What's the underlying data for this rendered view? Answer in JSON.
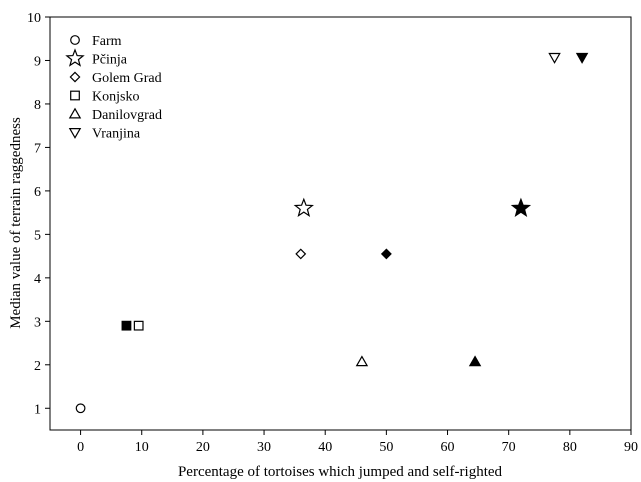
{
  "chart_data": {
    "type": "scatter",
    "title": "",
    "xlabel": "Percentage of tortoises which jumped and self-righted",
    "ylabel": "Median value of terrain raggedness",
    "xlim": [
      -5,
      90
    ],
    "ylim": [
      0.5,
      10
    ],
    "xticks": [
      0,
      10,
      20,
      30,
      40,
      50,
      60,
      70,
      80,
      90
    ],
    "yticks": [
      1,
      2,
      3,
      4,
      5,
      6,
      7,
      8,
      9,
      10
    ],
    "grid": false,
    "legend_position": "top-left",
    "series": [
      {
        "name": "Farm",
        "marker": "circle",
        "points": [
          {
            "x": 0,
            "y": 1.0,
            "filled": false
          }
        ]
      },
      {
        "name": "Pčinja",
        "marker": "star",
        "points": [
          {
            "x": 36.5,
            "y": 5.6,
            "filled": false
          },
          {
            "x": 72,
            "y": 5.6,
            "filled": true
          }
        ]
      },
      {
        "name": "Golem Grad",
        "marker": "diamond",
        "points": [
          {
            "x": 36,
            "y": 4.55,
            "filled": false
          },
          {
            "x": 50,
            "y": 4.55,
            "filled": true
          }
        ]
      },
      {
        "name": "Konjsko",
        "marker": "square",
        "points": [
          {
            "x": 9.5,
            "y": 2.9,
            "filled": false
          },
          {
            "x": 7.5,
            "y": 2.9,
            "filled": true
          }
        ]
      },
      {
        "name": "Danilovgrad",
        "marker": "triangle-up",
        "points": [
          {
            "x": 46,
            "y": 2.07,
            "filled": false
          },
          {
            "x": 64.5,
            "y": 2.07,
            "filled": true
          }
        ]
      },
      {
        "name": "Vranjina",
        "marker": "triangle-down",
        "points": [
          {
            "x": 77.5,
            "y": 9.07,
            "filled": false
          },
          {
            "x": 82,
            "y": 9.07,
            "filled": true
          }
        ]
      }
    ]
  }
}
